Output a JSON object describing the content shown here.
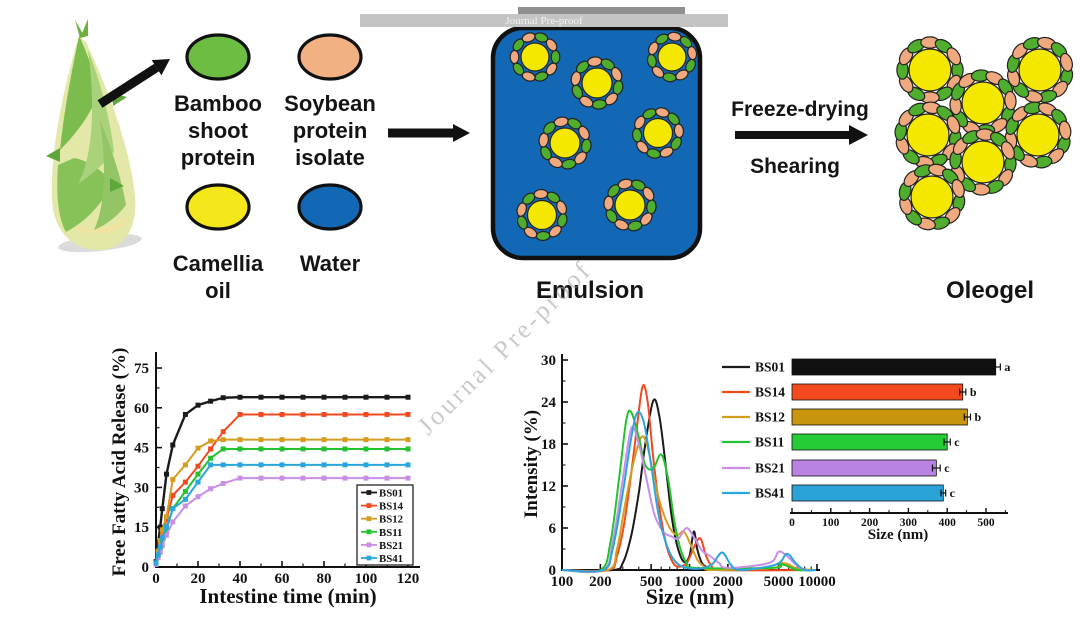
{
  "watermark": {
    "bar_text": "Journal Pre-proof",
    "diagonal_text": "Journal Pre-proof"
  },
  "diagram": {
    "ingredients": [
      {
        "name": "bamboo-shoot-protein",
        "label_lines": [
          "Bamboo",
          "shoot",
          "protein"
        ],
        "color": "#6cbd42"
      },
      {
        "name": "soybean-protein-isolate",
        "label_lines": [
          "Soybean",
          "protein",
          "isolate"
        ],
        "color": "#f2b183"
      },
      {
        "name": "camellia-oil",
        "label_lines": [
          "Camellia",
          "oil"
        ],
        "color": "#f4e81a"
      },
      {
        "name": "water",
        "label_lines": [
          "Water"
        ],
        "color": "#1268b4"
      }
    ],
    "emulsion_label": "Emulsion",
    "oleogel_label": "Oleogel",
    "process_labels": {
      "top": "Freeze-drying",
      "bottom": "Shearing"
    },
    "colors": {
      "emulsion_bg": "#1268b4",
      "droplet_core": "#f4e800",
      "droplet_green": "#4fae2e",
      "droplet_peach": "#f0a87e",
      "outline": "#111111"
    }
  },
  "chart_data": [
    {
      "id": "ffa-release",
      "type": "line",
      "title": "",
      "xlabel": "Intestine time (min)",
      "ylabel": "Free Fatty Acid Release (%)",
      "xlim": [
        0,
        125
      ],
      "ylim": [
        0,
        80
      ],
      "xticks": [
        0,
        20,
        40,
        60,
        80,
        100,
        120
      ],
      "yticks": [
        0,
        15,
        30,
        45,
        60,
        75
      ],
      "grid": false,
      "legend_position": "lower right",
      "x": [
        0,
        1,
        2,
        3,
        5,
        8,
        14,
        20,
        26,
        32,
        40,
        50,
        60,
        70,
        80,
        90,
        100,
        110,
        120
      ],
      "series": [
        {
          "name": "BS01",
          "color": "#1a1a1a",
          "values": [
            2,
            9,
            15,
            22,
            35,
            46,
            57.5,
            61,
            62.5,
            63.8,
            64,
            64,
            64,
            64,
            64,
            64,
            64,
            64,
            64
          ]
        },
        {
          "name": "BS14",
          "color": "#f2491f",
          "values": [
            1.5,
            5,
            8.5,
            12,
            18,
            27,
            32,
            38,
            44.5,
            51,
            57.5,
            57.5,
            57.5,
            57.5,
            57.5,
            57.5,
            57.5,
            57.5,
            57.5
          ]
        },
        {
          "name": "BS12",
          "color": "#d49c20",
          "values": [
            1.5,
            6,
            10,
            14,
            19,
            33,
            38.5,
            44.8,
            47.5,
            48,
            48,
            48,
            48,
            48,
            48,
            48,
            48,
            48,
            48
          ]
        },
        {
          "name": "BS11",
          "color": "#22c32f",
          "values": [
            1.5,
            4.5,
            7,
            10,
            14,
            22,
            28.5,
            35,
            41,
            44.5,
            44.5,
            44.5,
            44.5,
            44.5,
            44.5,
            44.5,
            44.5,
            44.5,
            44.5
          ]
        },
        {
          "name": "BS21",
          "color": "#c98fe6",
          "values": [
            1,
            3.5,
            5.5,
            8,
            12,
            17,
            23,
            26.5,
            29.5,
            31.5,
            33.5,
            33.5,
            33.5,
            33.5,
            33.5,
            33.5,
            33.5,
            33.5,
            33.5
          ]
        },
        {
          "name": "BS41",
          "color": "#2ba6dd",
          "values": [
            1.5,
            4.5,
            7.5,
            11,
            15,
            22,
            25.5,
            32,
            38.5,
            38.5,
            38.5,
            38.5,
            38.5,
            38.5,
            38.5,
            38.5,
            38.5,
            38.5,
            38.5
          ]
        }
      ]
    },
    {
      "id": "dls-intensity",
      "type": "line",
      "title": "",
      "xlabel": "Size (nm)",
      "ylabel": "Intensity (%)",
      "xscale": "log",
      "xlim": [
        100,
        10000
      ],
      "ylim": [
        0,
        30
      ],
      "xticks": [
        100,
        200,
        500,
        1000,
        2000,
        5000,
        10000
      ],
      "yticks": [
        0,
        6,
        12,
        18,
        24,
        30
      ],
      "grid": false,
      "series": [
        {
          "name": "BS01",
          "color": "#1a1a1a",
          "points": [
            [
              250,
              0
            ],
            [
              300,
              1
            ],
            [
              350,
              5
            ],
            [
              400,
              11
            ],
            [
              450,
              18
            ],
            [
              520,
              24.2
            ],
            [
              580,
              22
            ],
            [
              650,
              15
            ],
            [
              720,
              8
            ],
            [
              800,
              3.5
            ],
            [
              900,
              1.2
            ],
            [
              1000,
              2
            ],
            [
              1080,
              5.5
            ],
            [
              1150,
              3
            ],
            [
              1250,
              1
            ],
            [
              1400,
              0.3
            ],
            [
              1600,
              0
            ]
          ]
        },
        {
          "name": "BS14",
          "color": "#f2491f",
          "points": [
            [
              230,
              0
            ],
            [
              270,
              2
            ],
            [
              310,
              7
            ],
            [
              350,
              14
            ],
            [
              390,
              21
            ],
            [
              430,
              26.3
            ],
            [
              470,
              24
            ],
            [
              520,
              16
            ],
            [
              580,
              9
            ],
            [
              650,
              4
            ],
            [
              720,
              1.5
            ],
            [
              800,
              0.5
            ],
            [
              950,
              1
            ],
            [
              1100,
              3.5
            ],
            [
              1220,
              4.5
            ],
            [
              1350,
              2
            ],
            [
              1500,
              0.5
            ],
            [
              1700,
              0
            ]
          ]
        },
        {
          "name": "BS12",
          "color": "#d49c20",
          "points": [
            [
              230,
              0
            ],
            [
              270,
              3
            ],
            [
              310,
              9
            ],
            [
              360,
              15
            ],
            [
              420,
              19
            ],
            [
              470,
              17.5
            ],
            [
              530,
              13
            ],
            [
              600,
              9
            ],
            [
              700,
              6
            ],
            [
              800,
              5
            ],
            [
              900,
              5.5
            ],
            [
              1000,
              4
            ],
            [
              1150,
              1.5
            ],
            [
              1300,
              0.5
            ],
            [
              1500,
              0
            ],
            [
              4500,
              0.3
            ],
            [
              5200,
              1
            ],
            [
              6000,
              0.8
            ],
            [
              7000,
              0.2
            ]
          ]
        },
        {
          "name": "BS11",
          "color": "#22c32f",
          "points": [
            [
              200,
              0
            ],
            [
              240,
              4
            ],
            [
              280,
              13
            ],
            [
              320,
              21.5
            ],
            [
              350,
              22.5
            ],
            [
              400,
              19
            ],
            [
              450,
              15
            ],
            [
              520,
              14.5
            ],
            [
              600,
              16.5
            ],
            [
              680,
              13
            ],
            [
              760,
              7
            ],
            [
              850,
              3
            ],
            [
              950,
              1
            ],
            [
              1100,
              0.3
            ],
            [
              4500,
              0.3
            ],
            [
              5200,
              0.8
            ],
            [
              6000,
              0.5
            ],
            [
              7000,
              0
            ]
          ]
        },
        {
          "name": "BS21",
          "color": "#c98fe6",
          "points": [
            [
              210,
              0
            ],
            [
              250,
              4
            ],
            [
              300,
              13
            ],
            [
              350,
              20.3
            ],
            [
              400,
              18
            ],
            [
              460,
              13
            ],
            [
              530,
              8
            ],
            [
              620,
              5.5
            ],
            [
              720,
              4.8
            ],
            [
              820,
              4.5
            ],
            [
              950,
              6
            ],
            [
              1100,
              4.5
            ],
            [
              1250,
              2.8
            ],
            [
              1450,
              2
            ],
            [
              1700,
              1
            ],
            [
              2000,
              0.3
            ],
            [
              4200,
              1
            ],
            [
              5000,
              2.6
            ],
            [
              5800,
              2
            ],
            [
              6800,
              0.8
            ],
            [
              8000,
              0
            ]
          ]
        },
        {
          "name": "BS41",
          "color": "#2ba6dd",
          "points": [
            [
              210,
              0
            ],
            [
              250,
              3
            ],
            [
              300,
              11
            ],
            [
              350,
              19
            ],
            [
              390,
              22.5
            ],
            [
              440,
              21
            ],
            [
              500,
              15
            ],
            [
              570,
              8
            ],
            [
              650,
              4
            ],
            [
              750,
              1.5
            ],
            [
              900,
              0.4
            ],
            [
              1200,
              0.2
            ],
            [
              1500,
              0.8
            ],
            [
              1800,
              2.5
            ],
            [
              2100,
              0.8
            ],
            [
              2500,
              0
            ],
            [
              4800,
              0.8
            ],
            [
              5800,
              2.3
            ],
            [
              6800,
              1
            ],
            [
              8000,
              0
            ]
          ]
        }
      ]
    },
    {
      "id": "mean-size-bars",
      "type": "bar",
      "orientation": "horizontal",
      "xlabel": "Size (nm)",
      "xlim": [
        0,
        560
      ],
      "xticks": [
        0,
        100,
        200,
        300,
        400,
        500
      ],
      "categories": [
        "BS01",
        "BS14",
        "BS12",
        "BS11",
        "BS21",
        "BS41"
      ],
      "values": [
        525,
        440,
        452,
        400,
        372,
        390
      ],
      "errors": [
        12,
        8,
        8,
        8,
        10,
        6
      ],
      "sig_letters": [
        "a",
        "b",
        "b",
        "c",
        "c",
        "c"
      ],
      "bar_colors": [
        "#111111",
        "#f2491f",
        "#c8960e",
        "#26cc36",
        "#b983e3",
        "#29a3d8"
      ],
      "legend_colors": [
        "#1a1a1a",
        "#f2491f",
        "#d49c20",
        "#22c32f",
        "#c98fe6",
        "#2ba6dd"
      ]
    }
  ]
}
